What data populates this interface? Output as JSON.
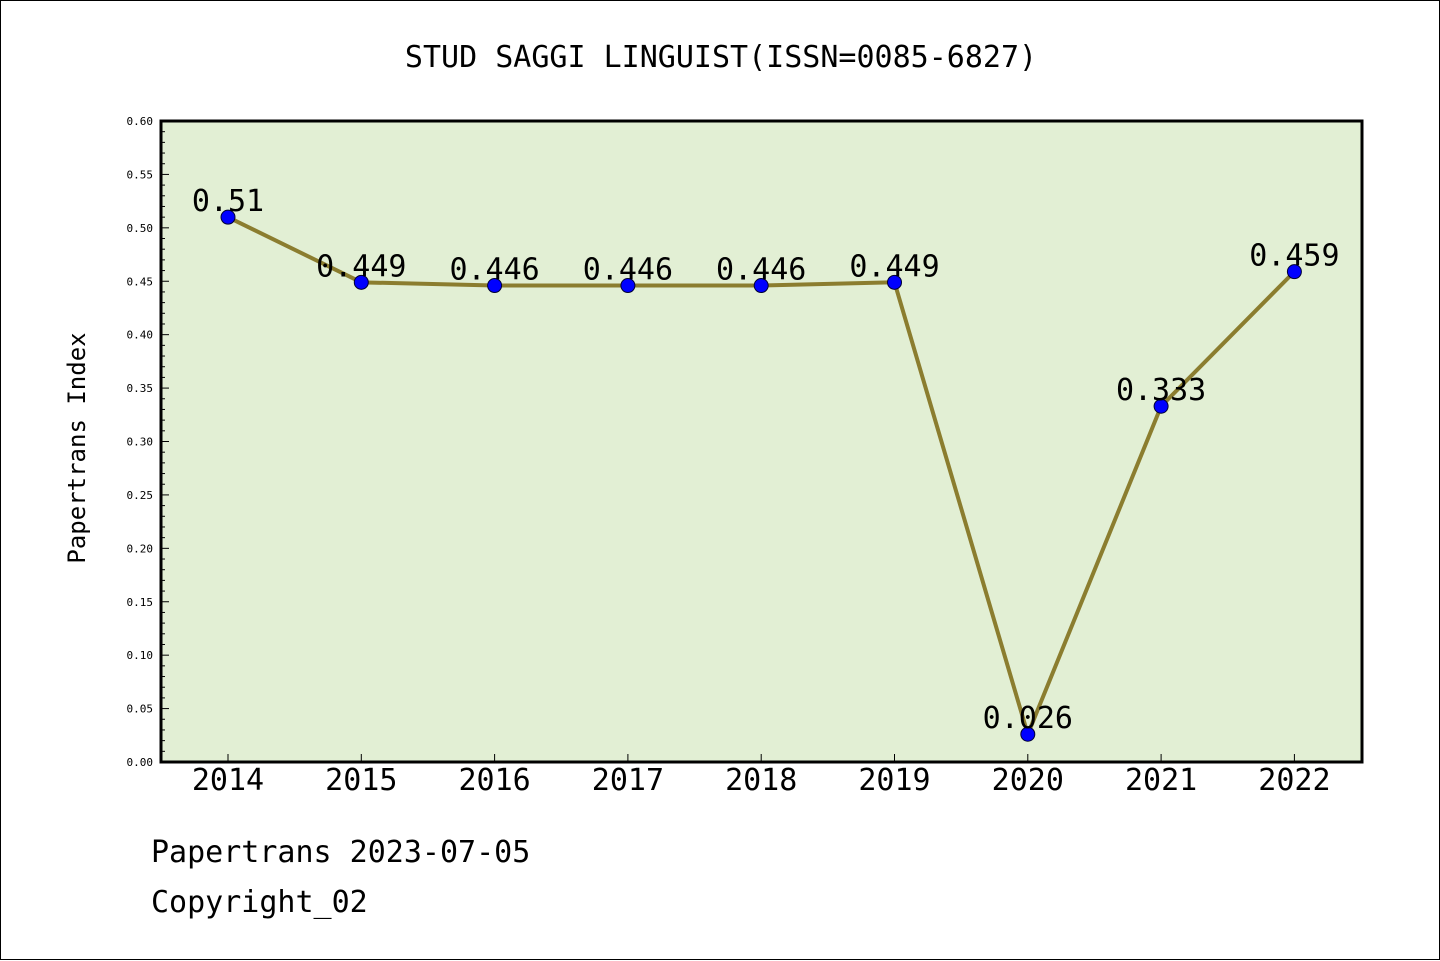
{
  "chart_data": {
    "type": "line",
    "title": "STUD SAGGI LINGUIST(ISSN=0085-6827)",
    "xlabel": "",
    "ylabel": "Papertrans Index",
    "categories": [
      "2014",
      "2015",
      "2016",
      "2017",
      "2018",
      "2019",
      "2020",
      "2021",
      "2022"
    ],
    "series": [
      {
        "values": [
          0.51,
          0.449,
          0.446,
          0.446,
          0.446,
          0.449,
          0.026,
          0.333,
          0.459
        ]
      }
    ],
    "data_labels": [
      "0.51",
      "0.449",
      "0.446",
      "0.446",
      "0.446",
      "0.449",
      "0.026",
      "0.333",
      "0.459"
    ],
    "ylim": [
      0,
      0.6
    ],
    "yticks": [
      "0.00",
      "0.05",
      "0.10",
      "0.15",
      "0.20",
      "0.25",
      "0.30",
      "0.35",
      "0.40",
      "0.45",
      "0.50",
      "0.55",
      "0.60"
    ],
    "grid": false,
    "legend": "none"
  },
  "colors": {
    "plot_background": "#e2efd4",
    "line": "#8b7d2f",
    "marker": "#0000ff",
    "axis": "#000000"
  },
  "footer": {
    "source": "Papertrans 2023-07-05",
    "copyright": "Copyright_02"
  }
}
